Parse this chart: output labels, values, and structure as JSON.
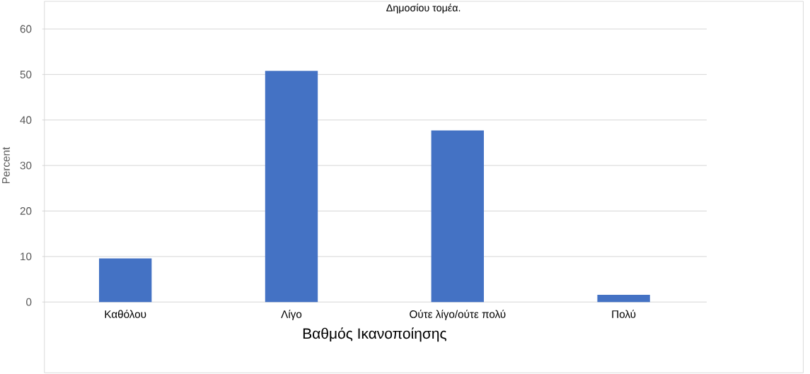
{
  "chart_data": {
    "type": "bar",
    "title": "Δημοσίου τομέα.",
    "xlabel": "Βαθμός Ικανοποίησης",
    "ylabel": "Percent",
    "categories": [
      "Καθόλου",
      "Λίγο",
      "Ούτε λίγο/ούτε πολύ",
      "Πολύ"
    ],
    "values": [
      9.6,
      50.8,
      37.7,
      1.6
    ],
    "color": "#4472c4",
    "ylim": [
      0,
      60
    ],
    "yticks": [
      0,
      10,
      20,
      30,
      40,
      50,
      60
    ],
    "grid": "y"
  }
}
